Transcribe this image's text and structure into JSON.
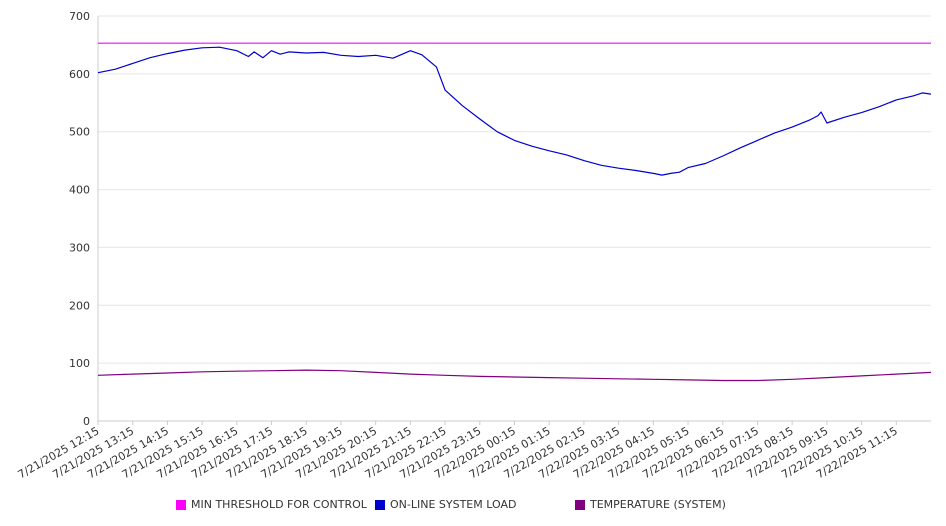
{
  "chart_data": {
    "type": "line",
    "ylim": [
      0,
      700
    ],
    "yticks": [
      "0",
      "100",
      "200",
      "300",
      "400",
      "500",
      "600",
      "700"
    ],
    "x_tick_labels": [
      "7/21/2025 12:15",
      "7/21/2025 13:15",
      "7/21/2025 14:15",
      "7/21/2025 15:15",
      "7/21/2025 16:15",
      "7/21/2025 17:15",
      "7/21/2025 18:15",
      "7/21/2025 19:15",
      "7/21/2025 20:15",
      "7/21/2025 21:15",
      "7/21/2025 22:15",
      "7/21/2025 23:15",
      "7/22/2025 00:15",
      "7/22/2025 01:15",
      "7/22/2025 02:15",
      "7/22/2025 03:15",
      "7/22/2025 04:15",
      "7/22/2025 05:15",
      "7/22/2025 06:15",
      "7/22/2025 07:15",
      "7/22/2025 08:15",
      "7/22/2025 09:15",
      "7/22/2025 10:15",
      "7/22/2025 11:15"
    ],
    "x_range": [
      "7/21/2025 12:15",
      "7/22/2025 12:15"
    ],
    "grid": true,
    "legend_position": "bottom",
    "series": [
      {
        "name": "MIN THRESHOLD FOR CONTROL",
        "color": "#ff00ff",
        "times": [
          "7/21/2025 12:15",
          "7/22/2025 12:15"
        ],
        "values": [
          653,
          653
        ]
      },
      {
        "name": "ON-LINE SYSTEM LOAD",
        "color": "#0000cc",
        "times": [
          "7/21/2025 12:15",
          "7/21/2025 12:45",
          "7/21/2025 13:15",
          "7/21/2025 13:45",
          "7/21/2025 14:15",
          "7/21/2025 14:45",
          "7/21/2025 15:15",
          "7/21/2025 15:45",
          "7/21/2025 16:15",
          "7/21/2025 16:35",
          "7/21/2025 16:45",
          "7/21/2025 17:00",
          "7/21/2025 17:15",
          "7/21/2025 17:30",
          "7/21/2025 17:45",
          "7/21/2025 18:15",
          "7/21/2025 18:45",
          "7/21/2025 19:15",
          "7/21/2025 19:45",
          "7/21/2025 20:15",
          "7/21/2025 20:45",
          "7/21/2025 21:15",
          "7/21/2025 21:35",
          "7/21/2025 22:00",
          "7/21/2025 22:15",
          "7/21/2025 22:45",
          "7/21/2025 23:15",
          "7/21/2025 23:45",
          "7/22/2025 00:15",
          "7/22/2025 00:45",
          "7/22/2025 01:15",
          "7/22/2025 01:45",
          "7/22/2025 02:15",
          "7/22/2025 02:45",
          "7/22/2025 03:15",
          "7/22/2025 03:45",
          "7/22/2025 04:15",
          "7/22/2025 04:30",
          "7/22/2025 04:45",
          "7/22/2025 05:00",
          "7/22/2025 05:15",
          "7/22/2025 05:45",
          "7/22/2025 06:15",
          "7/22/2025 06:45",
          "7/22/2025 07:15",
          "7/22/2025 07:45",
          "7/22/2025 08:15",
          "7/22/2025 08:45",
          "7/22/2025 09:00",
          "7/22/2025 09:05",
          "7/22/2025 09:15",
          "7/22/2025 09:45",
          "7/22/2025 10:15",
          "7/22/2025 10:45",
          "7/22/2025 11:15",
          "7/22/2025 11:45",
          "7/22/2025 12:00",
          "7/22/2025 12:15"
        ],
        "values": [
          602,
          608,
          618,
          628,
          635,
          641,
          645,
          646,
          640,
          630,
          638,
          628,
          640,
          634,
          638,
          636,
          637,
          632,
          630,
          632,
          627,
          640,
          633,
          612,
          572,
          545,
          522,
          500,
          485,
          475,
          467,
          460,
          450,
          442,
          437,
          433,
          428,
          425,
          428,
          430,
          438,
          445,
          458,
          472,
          485,
          498,
          508,
          520,
          528,
          534,
          515,
          525,
          533,
          543,
          555,
          562,
          567,
          565
        ]
      },
      {
        "name": "TEMPERATURE (SYSTEM)",
        "color": "#800080",
        "times": [
          "7/21/2025 12:15",
          "7/21/2025 13:15",
          "7/21/2025 14:15",
          "7/21/2025 15:15",
          "7/21/2025 16:15",
          "7/21/2025 17:15",
          "7/21/2025 18:15",
          "7/21/2025 19:15",
          "7/21/2025 20:15",
          "7/21/2025 21:15",
          "7/21/2025 22:15",
          "7/21/2025 23:15",
          "7/22/2025 00:15",
          "7/22/2025 01:15",
          "7/22/2025 02:15",
          "7/22/2025 03:15",
          "7/22/2025 04:15",
          "7/22/2025 05:15",
          "7/22/2025 06:15",
          "7/22/2025 07:15",
          "7/22/2025 08:15",
          "7/22/2025 09:15",
          "7/22/2025 10:15",
          "7/22/2025 11:15",
          "7/22/2025 12:15"
        ],
        "values": [
          79,
          81,
          83,
          85,
          86,
          87,
          88,
          87,
          84,
          81,
          79,
          77,
          76,
          75,
          74,
          73,
          72,
          71,
          70,
          70,
          72,
          75,
          78,
          81,
          84
        ]
      }
    ]
  }
}
